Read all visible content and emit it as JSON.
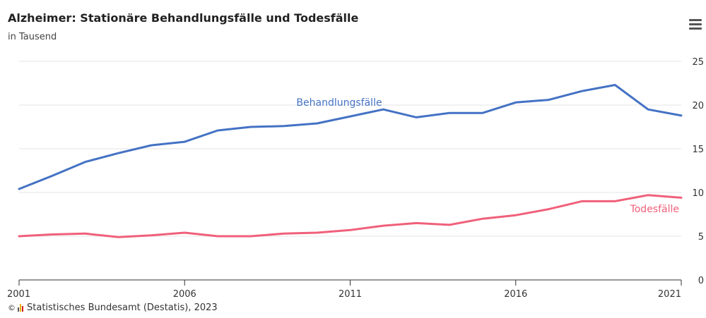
{
  "header": {
    "title": "Alzheimer: Stationäre Behandlungsfälle und Todesfälle",
    "subtitle": "in Tausend"
  },
  "footer": {
    "copyright_symbol": "©",
    "source": "Statistisches Bundesamt (Destatis), 2023"
  },
  "icons": {
    "menu": "hamburger-menu-icon",
    "logo": "destatis-logo-icon"
  },
  "colors": {
    "behandlungsfaelle": "#4472c4",
    "todesfaelle": "#f0607a",
    "grid": "#e6e6e6",
    "axis": "#333333"
  },
  "chart_data": {
    "type": "line",
    "title": "Alzheimer: Stationäre Behandlungsfälle und Todesfälle",
    "subtitle": "in Tausend",
    "x": [
      2001,
      2002,
      2003,
      2004,
      2005,
      2006,
      2007,
      2008,
      2009,
      2010,
      2011,
      2012,
      2013,
      2014,
      2015,
      2016,
      2017,
      2018,
      2019,
      2020,
      2021
    ],
    "x_tick_labels": [
      "2001",
      "2006",
      "2011",
      "2016",
      "2021"
    ],
    "y_tick_labels": [
      "0",
      "5",
      "10",
      "15",
      "20",
      "25"
    ],
    "ylim": [
      0,
      25
    ],
    "grid": true,
    "y_axis_position": "right",
    "series": [
      {
        "name": "Behandlungsfälle",
        "color": "#4472c4",
        "values": [
          10.4,
          11.9,
          13.5,
          14.5,
          15.4,
          15.8,
          17.1,
          17.5,
          17.6,
          17.9,
          18.7,
          19.5,
          18.6,
          19.1,
          19.1,
          20.3,
          20.6,
          21.6,
          22.3,
          19.5,
          18.8
        ]
      },
      {
        "name": "Todesfälle",
        "color": "#f0607a",
        "values": [
          5.0,
          5.2,
          5.3,
          4.9,
          5.1,
          5.4,
          5.0,
          5.0,
          5.3,
          5.4,
          5.7,
          6.2,
          6.5,
          6.3,
          7.0,
          7.4,
          8.1,
          9.0,
          9.0,
          9.7,
          9.4
        ]
      }
    ]
  }
}
